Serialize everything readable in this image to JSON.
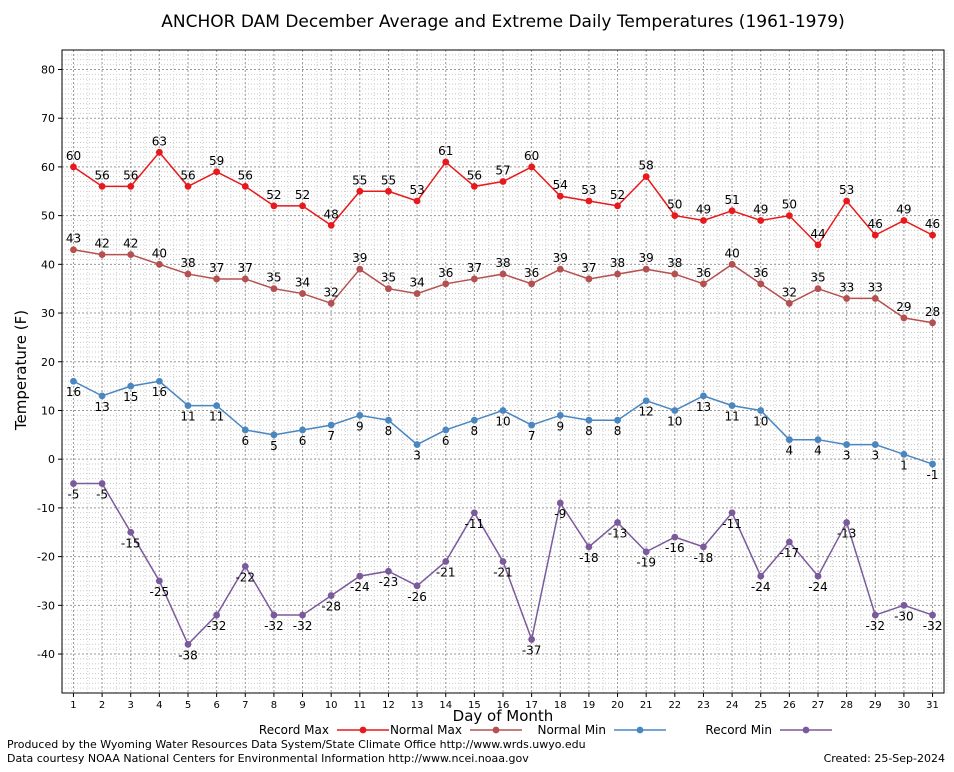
{
  "chart_data": {
    "type": "line",
    "title": "ANCHOR DAM December Average and Extreme Daily Temperatures (1961-1979)",
    "xlabel": "Day of Month",
    "ylabel": "Temperature (F)",
    "x": [
      1,
      2,
      3,
      4,
      5,
      6,
      7,
      8,
      9,
      10,
      11,
      12,
      13,
      14,
      15,
      16,
      17,
      18,
      19,
      20,
      21,
      22,
      23,
      24,
      25,
      26,
      27,
      28,
      29,
      30,
      31
    ],
    "xlim": [
      0.6,
      31.4
    ],
    "ylim": [
      -48,
      84
    ],
    "yticks": [
      -40,
      -30,
      -20,
      -10,
      0,
      10,
      20,
      30,
      40,
      50,
      60,
      70,
      80
    ],
    "grid": true,
    "legend_position": "bottom",
    "series": [
      {
        "name": "Record Max",
        "color": "#e8191c",
        "line_color": "#e8191c",
        "values": [
          60,
          56,
          56,
          63,
          56,
          59,
          56,
          52,
          52,
          48,
          55,
          55,
          53,
          61,
          56,
          57,
          60,
          54,
          53,
          52,
          58,
          50,
          49,
          51,
          49,
          50,
          44,
          53,
          46,
          49,
          46
        ]
      },
      {
        "name": "Normal Max",
        "color": "#b55050",
        "line_color": "#b55050",
        "values": [
          43,
          42,
          42,
          40,
          38,
          37,
          37,
          35,
          34,
          32,
          39,
          35,
          34,
          36,
          37,
          38,
          36,
          39,
          37,
          38,
          39,
          38,
          36,
          40,
          36,
          32,
          35,
          33,
          33,
          29,
          28
        ]
      },
      {
        "name": "Normal Min",
        "color": "#4a86c0",
        "line_color": "#4a86c0",
        "values": [
          16,
          13,
          15,
          16,
          11,
          11,
          6,
          5,
          6,
          7,
          9,
          8,
          3,
          6,
          8,
          10,
          7,
          9,
          8,
          8,
          12,
          10,
          13,
          11,
          10,
          4,
          4,
          3,
          3,
          1,
          -1
        ]
      },
      {
        "name": "Record Min",
        "color": "#7b5a9c",
        "line_color": "#7b5a9c",
        "values": [
          -5,
          -5,
          -15,
          -25,
          -38,
          -32,
          -22,
          -32,
          -32,
          -28,
          -24,
          -23,
          -26,
          -21,
          -11,
          -21,
          -37,
          -9,
          -18,
          -13,
          -19,
          -16,
          -18,
          -11,
          -24,
          -17,
          -24,
          -13,
          -32,
          -30,
          -32
        ]
      }
    ]
  },
  "footer": {
    "line1": "Produced by the Wyoming Water Resources Data System/State Climate Office http://www.wrds.uwyo.edu",
    "line2": "Data courtesy NOAA National Centers for Environmental Information http://www.ncei.noaa.gov",
    "created": "Created:  25-Sep-2024"
  }
}
